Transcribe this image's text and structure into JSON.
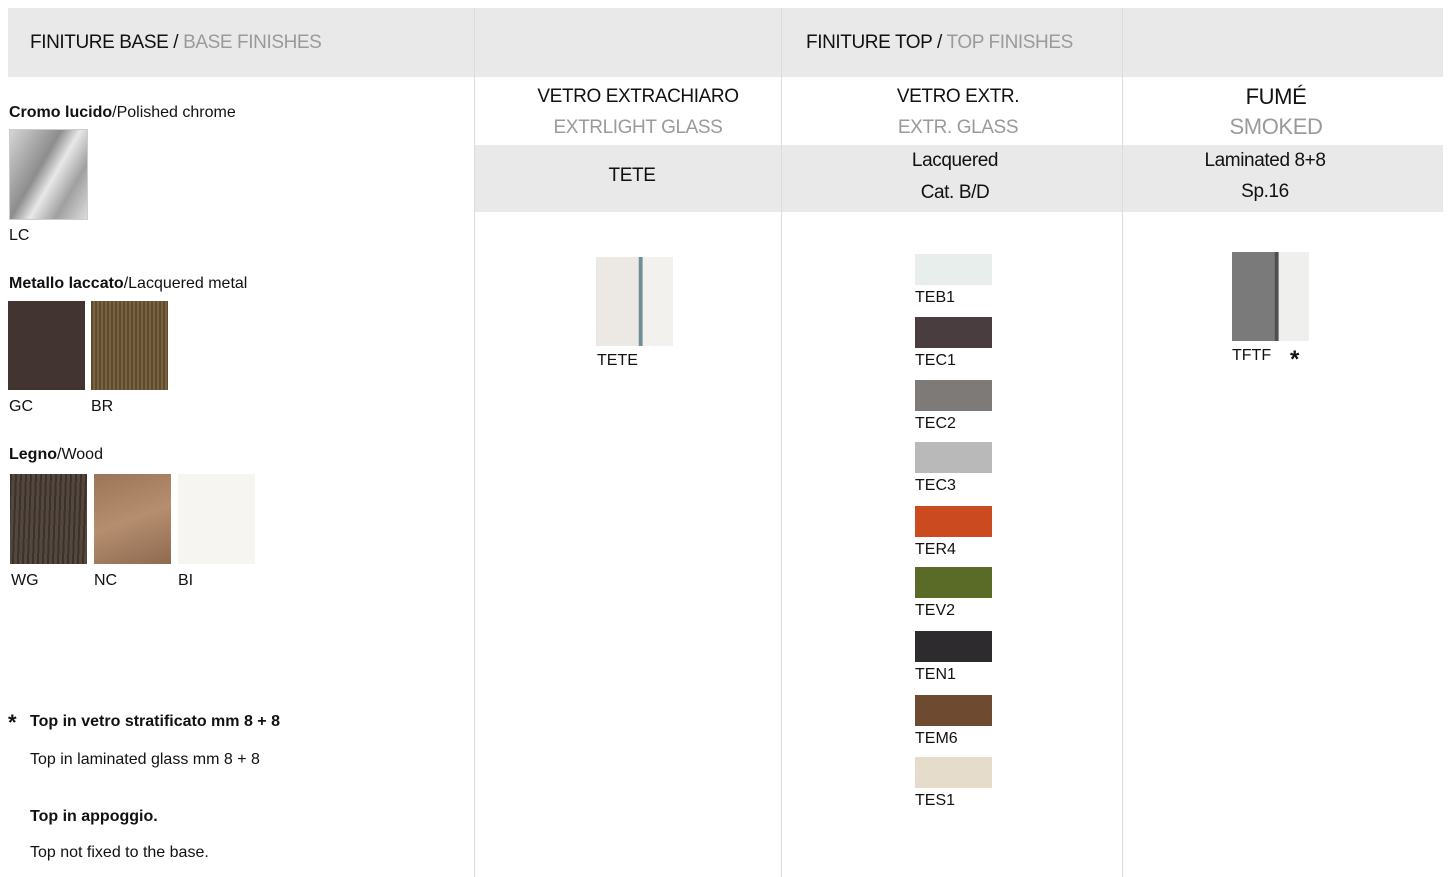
{
  "header": {
    "base": {
      "it": "FINITURE BASE",
      "sep": "/",
      "en": "BASE FINISHES"
    },
    "top": {
      "it": "FINITURE TOP",
      "sep": "/",
      "en": "TOP FINISHES"
    }
  },
  "base_groups": [
    {
      "title_it": "Cromo lucido",
      "sep": "/",
      "title_en": "Polished chrome",
      "swatches": [
        "LC"
      ]
    },
    {
      "title_it": "Metallo laccato",
      "sep": "/",
      "title_en": "Lacquered metal",
      "swatches": [
        "GC",
        "BR"
      ]
    },
    {
      "title_it": "Legno",
      "sep": "/",
      "title_en": "Wood",
      "swatches": [
        "WG",
        "NC",
        "BI"
      ]
    }
  ],
  "top_columns": [
    {
      "title_it": "VETRO EXTRACHIARO",
      "title_en": "EXTRLIGHT GLASS",
      "type": [
        "TETE"
      ],
      "swatches": [
        "TETE"
      ]
    },
    {
      "title_it": "VETRO EXTR.",
      "title_en": "EXTR. GLASS",
      "type": [
        "Lacquered",
        "Cat. B/D"
      ],
      "swatches": [
        "TEB1",
        "TEC1",
        "TEC2",
        "TEC3",
        "TER4",
        "TEV2",
        "TEN1",
        "TEM6",
        "TES1"
      ]
    },
    {
      "title_it": "FUMÉ",
      "title_en": "SMOKED",
      "type": [
        "Laminated 8+8",
        "Sp.16"
      ],
      "swatches": [
        "TFTF"
      ],
      "mark": "*"
    }
  ],
  "notes": {
    "mark": "*",
    "lines": [
      "Top in vetro stratificato mm 8 + 8",
      "Top in laminated glass mm 8 + 8",
      "Top in appoggio.",
      "Top not fixed to the base."
    ]
  }
}
